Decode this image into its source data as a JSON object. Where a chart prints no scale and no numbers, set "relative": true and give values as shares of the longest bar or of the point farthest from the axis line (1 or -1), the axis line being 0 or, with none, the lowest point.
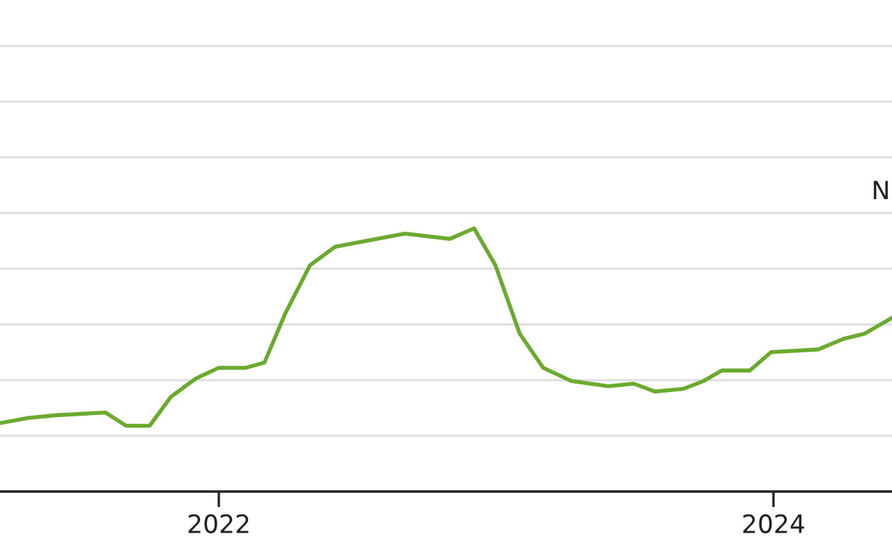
{
  "chart_data": {
    "type": "line",
    "relative": true,
    "x": [
      "2021-03-19",
      "2021-04-25",
      "2021-06-01",
      "2021-08-05",
      "2021-09-01",
      "2021-10-02",
      "2021-10-30",
      "2021-12-02",
      "2022-01-01",
      "2022-02-05",
      "2022-03-02",
      "2022-03-30",
      "2022-05-01",
      "2022-06-03",
      "2022-07-09",
      "2022-09-03",
      "2022-11-01",
      "2022-12-03",
      "2022-12-31",
      "2023-02-01",
      "2023-03-04",
      "2023-04-10",
      "2023-05-29",
      "2023-07-01",
      "2023-07-29",
      "2023-09-04",
      "2023-10-01",
      "2023-10-25",
      "2023-12-01",
      "2023-12-29",
      "2024-02-29",
      "2024-04-02",
      "2024-04-30",
      "2024-06-05"
    ],
    "series": [
      {
        "color": "#6aaa2e",
        "values": [
          0.26,
          0.28,
          0.29,
          0.3,
          0.25,
          0.25,
          0.36,
          0.43,
          0.47,
          0.47,
          0.49,
          0.68,
          0.86,
          0.93,
          0.95,
          0.98,
          0.96,
          1.0,
          0.86,
          0.6,
          0.47,
          0.42,
          0.4,
          0.41,
          0.38,
          0.39,
          0.42,
          0.46,
          0.46,
          0.53,
          0.54,
          0.58,
          0.6,
          0.66
        ]
      }
    ],
    "xlim": [
      "2021-03-19",
      "2024-06-05"
    ],
    "xticks": [
      {
        "value": "2022-01-01",
        "label": "2022"
      },
      {
        "value": "2024-01-01",
        "label": "2024"
      }
    ],
    "grid": "y",
    "tick_labels": "x",
    "marker": "none",
    "line_style": "solid",
    "legend": false,
    "annotations": [
      "N"
    ]
  }
}
